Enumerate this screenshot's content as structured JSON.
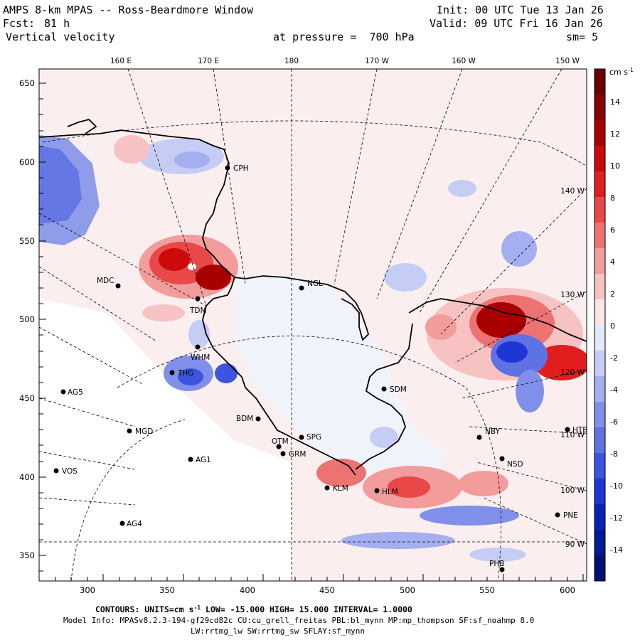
{
  "header": {
    "title": "AMPS 8-km MPAS -- Ross-Beardmore Window",
    "init": "Init: 00 UTC Tue 13 Jan 26",
    "fcst_label": "Fcst:",
    "fcst_value": "81 h",
    "valid": "Valid: 09 UTC Fri 16 Jan 26",
    "field": "Vertical velocity",
    "pressure": "at pressure =  700 hPa",
    "smooth": "sm= 5"
  },
  "axes": {
    "x_ticks": [
      "300",
      "350",
      "400",
      "450",
      "500",
      "550",
      "600"
    ],
    "y_ticks": [
      "650",
      "600",
      "550",
      "500",
      "450",
      "400",
      "350"
    ]
  },
  "longitude_labels_top": [
    "160 E",
    "170 E",
    "180",
    "170 W",
    "160 W",
    "150 W"
  ],
  "longitude_labels_right": [
    "140 W",
    "130 W",
    "120 W",
    "110 W",
    "100 W",
    "90 W"
  ],
  "stations": [
    {
      "name": "CPH"
    },
    {
      "name": "NGL"
    },
    {
      "name": "MDC"
    },
    {
      "name": "TDM"
    },
    {
      "name": "WHM"
    },
    {
      "name": "THG"
    },
    {
      "name": "SDM"
    },
    {
      "name": "AG5"
    },
    {
      "name": "BDM"
    },
    {
      "name": "MGD"
    },
    {
      "name": "SPG"
    },
    {
      "name": "OTM"
    },
    {
      "name": "GRM"
    },
    {
      "name": "AG1"
    },
    {
      "name": "NBY"
    },
    {
      "name": "NSD"
    },
    {
      "name": "VOS"
    },
    {
      "name": "KLM"
    },
    {
      "name": "HLM"
    },
    {
      "name": "AG4"
    },
    {
      "name": "PNE"
    },
    {
      "name": "PHB"
    },
    {
      "name": "HTB"
    }
  ],
  "colorbar": {
    "units": "cm s",
    "units_exp": "-1",
    "labels": [
      "14",
      "12",
      "10",
      "8",
      "6",
      "4",
      "2",
      "0",
      "-2",
      "-4",
      "-6",
      "-8",
      "-10",
      "-12",
      "-14"
    ],
    "positive_colors": [
      "#fbe4e4",
      "#f6c2c2",
      "#f29c9c",
      "#ed7272",
      "#e84848",
      "#e01e1e",
      "#cc0a0a",
      "#a80000",
      "#8a0000",
      "#6b0000"
    ],
    "negative_colors": [
      "#e4e8fb",
      "#c6cdf5",
      "#a4afef",
      "#8090ea",
      "#5e72e4",
      "#3c54de",
      "#1e36d4",
      "#0a22b4",
      "#041a94",
      "#021076"
    ]
  },
  "footer": {
    "contours_prefix": "CONTOURS:  UNITS=cm s",
    "contours_exp": "-1",
    "contours_rest": "  LOW= -15.000      HIGH=  15.000     INTERVAL=   1.0000",
    "model_info": "Model Info: MPASv8.2.3-194-gf29cd82c CU:cu_grell_freitas PBL:bl_mynn MP:mp_thompson SF:sf_noahmp 8.0",
    "model_info2": "LW:rrtmg_lw SW:rrtmg_sw SFLAY:sf_mynn"
  }
}
